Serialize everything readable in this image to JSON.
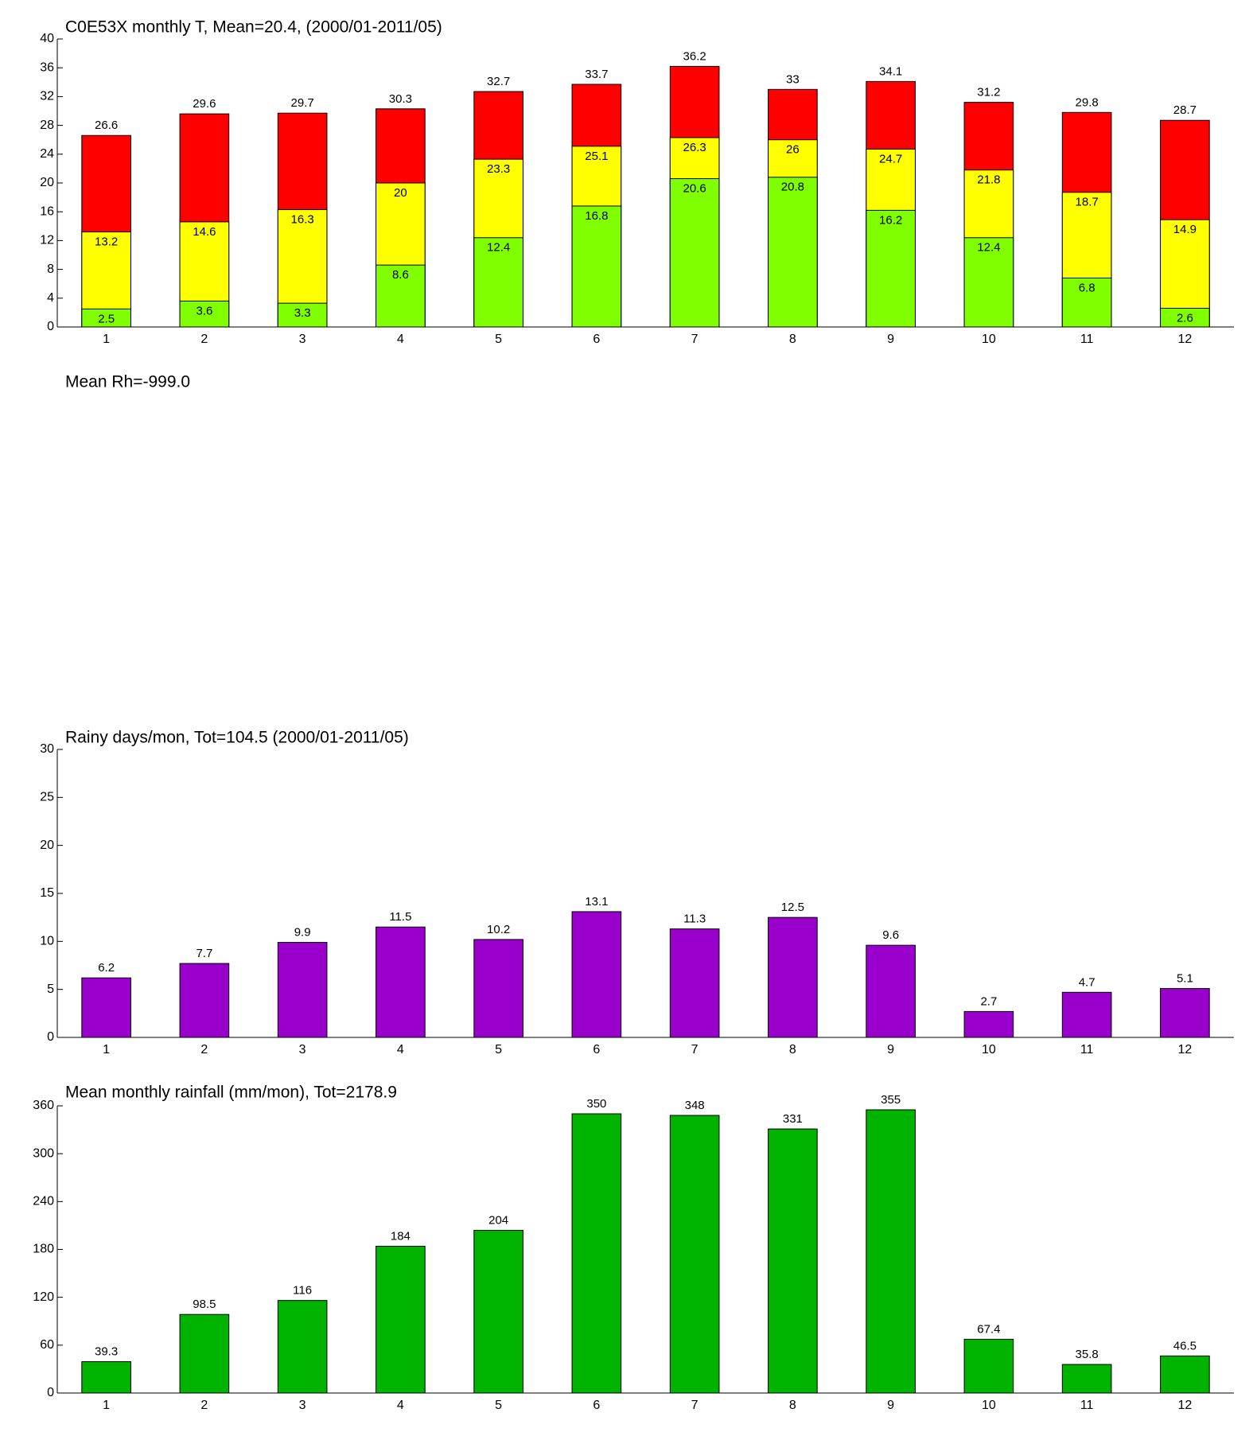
{
  "chart_data": [
    {
      "type": "bar",
      "title": "C0E53X monthly T, Mean=20.4, (2000/01-2011/05)",
      "categories": [
        "1",
        "2",
        "3",
        "4",
        "5",
        "6",
        "7",
        "8",
        "9",
        "10",
        "11",
        "12"
      ],
      "series": [
        {
          "color": "#ff0000",
          "values": [
            26.6,
            29.6,
            29.7,
            30.3,
            32.7,
            33.7,
            36.2,
            33,
            34.1,
            31.2,
            29.8,
            28.7
          ]
        },
        {
          "color": "#ffff00",
          "values": [
            13.2,
            14.6,
            16.3,
            20,
            23.3,
            25.1,
            26.3,
            26,
            24.7,
            21.8,
            18.7,
            14.9
          ]
        },
        {
          "color": "#80ff00",
          "values": [
            2.5,
            3.6,
            3.3,
            8.6,
            12.4,
            16.8,
            20.6,
            20.8,
            16.2,
            12.4,
            6.8,
            2.6
          ]
        }
      ],
      "ylim": [
        0,
        40
      ],
      "yticks": [
        0,
        4,
        8,
        12,
        16,
        20,
        24,
        28,
        32,
        36,
        40
      ]
    },
    {
      "type": "blank",
      "title": "Mean Rh=-999.0"
    },
    {
      "type": "bar",
      "title": "Rainy days/mon, Tot=104.5 (2000/01-2011/05)",
      "categories": [
        "1",
        "2",
        "3",
        "4",
        "5",
        "6",
        "7",
        "8",
        "9",
        "10",
        "11",
        "12"
      ],
      "series": [
        {
          "color": "#9900cc",
          "values": [
            6.2,
            7.7,
            9.9,
            11.5,
            10.2,
            13.1,
            11.3,
            12.5,
            9.6,
            2.7,
            4.7,
            5.1
          ]
        }
      ],
      "ylim": [
        0,
        30
      ],
      "yticks": [
        0,
        5,
        10,
        15,
        20,
        25,
        30
      ]
    },
    {
      "type": "bar",
      "title": "Mean monthly rainfall (mm/mon), Tot=2178.9",
      "categories": [
        "1",
        "2",
        "3",
        "4",
        "5",
        "6",
        "7",
        "8",
        "9",
        "10",
        "11",
        "12"
      ],
      "series": [
        {
          "color": "#00b300",
          "values": [
            39.3,
            98.5,
            116,
            184,
            204,
            350,
            348,
            331,
            355,
            67.4,
            35.8,
            46.5
          ]
        }
      ],
      "ylim": [
        0,
        360
      ],
      "yticks": [
        0,
        60,
        120,
        180,
        240,
        300,
        360
      ]
    }
  ]
}
